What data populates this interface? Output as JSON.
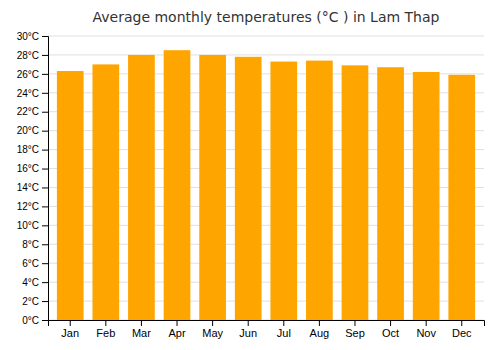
{
  "chart_data": {
    "type": "bar",
    "title": "Average monthly temperatures (°C ) in Lam Thap",
    "categories": [
      "Jan",
      "Feb",
      "Mar",
      "Apr",
      "May",
      "Jun",
      "Jul",
      "Aug",
      "Sep",
      "Oct",
      "Nov",
      "Dec"
    ],
    "values": [
      26.3,
      27.0,
      28.0,
      28.5,
      28.0,
      27.8,
      27.3,
      27.4,
      26.9,
      26.7,
      26.2,
      25.9
    ],
    "color": "#FFA500",
    "ylim": [
      0,
      30
    ],
    "yticks": [
      {
        "value": 0,
        "label": "0°C"
      },
      {
        "value": 2,
        "label": "2°C"
      },
      {
        "value": 4,
        "label": "4°C"
      },
      {
        "value": 6,
        "label": "6°C"
      },
      {
        "value": 8,
        "label": "8°C"
      },
      {
        "value": 10,
        "label": "10°C"
      },
      {
        "value": 12,
        "label": "12°C"
      },
      {
        "value": 14,
        "label": "14°C"
      },
      {
        "value": 16,
        "label": "16°C"
      },
      {
        "value": 18,
        "label": "18°C"
      },
      {
        "value": 20,
        "label": "20°C"
      },
      {
        "value": 22,
        "label": "22°C"
      },
      {
        "value": 24,
        "label": "24°C"
      },
      {
        "value": 26,
        "label": "26°C"
      },
      {
        "value": 28,
        "label": "28°C"
      },
      {
        "value": 30,
        "label": "30°C"
      }
    ],
    "grid": true
  }
}
